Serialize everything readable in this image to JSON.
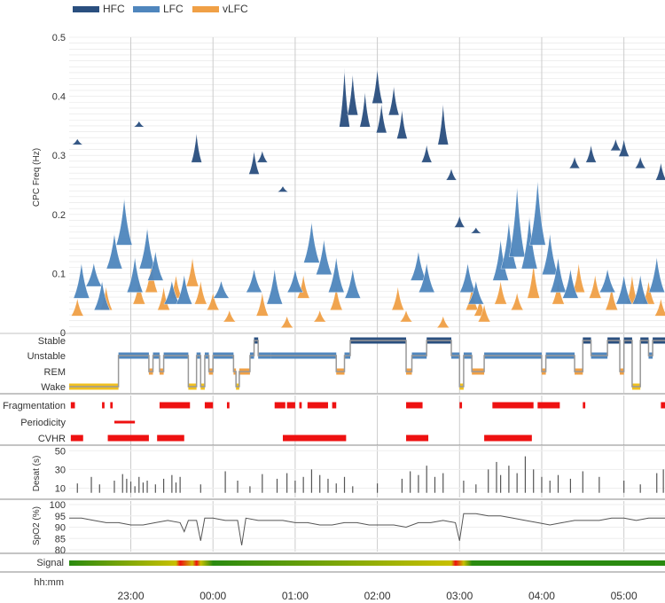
{
  "colors": {
    "hfc": "#2a4f7f",
    "lfc": "#4f86bd",
    "vlfc": "#f0a046",
    "wake": "#f0c020",
    "red": "#ee1111",
    "grid": "#dddddd",
    "text": "#333333",
    "spo2": "#555555"
  },
  "chart_data": [
    {
      "type": "area",
      "name": "cpc-spectrogram",
      "legend": [
        {
          "name": "HFC",
          "color": "#2a4f7f"
        },
        {
          "name": "LFC",
          "color": "#4f86bd"
        },
        {
          "name": "vLFC",
          "color": "#f0a046"
        }
      ],
      "ylabel": "CPC Freq (Hz)",
      "ylim": [
        0,
        0.5
      ],
      "yticks": [
        "0",
        "0.1",
        "0.2",
        "0.3",
        "0.4",
        "0.5"
      ],
      "xlim_hours": [
        22.25,
        29.5
      ],
      "hfc_peaks": [
        [
          22.35,
          0.33,
          0.01
        ],
        [
          23.1,
          0.36,
          0.01
        ],
        [
          23.8,
          0.3,
          0.05
        ],
        [
          24.5,
          0.28,
          0.04
        ],
        [
          24.6,
          0.3,
          0.02
        ],
        [
          24.85,
          0.25,
          0.01
        ],
        [
          25.6,
          0.36,
          0.1
        ],
        [
          25.7,
          0.38,
          0.07
        ],
        [
          25.85,
          0.36,
          0.06
        ],
        [
          26.0,
          0.4,
          0.06
        ],
        [
          26.05,
          0.35,
          0.05
        ],
        [
          26.2,
          0.38,
          0.05
        ],
        [
          26.3,
          0.34,
          0.05
        ],
        [
          26.6,
          0.3,
          0.03
        ],
        [
          26.8,
          0.33,
          0.07
        ],
        [
          26.9,
          0.27,
          0.02
        ],
        [
          27.0,
          0.19,
          0.02
        ],
        [
          27.2,
          0.18,
          0.01
        ],
        [
          28.4,
          0.29,
          0.02
        ],
        [
          28.6,
          0.3,
          0.03
        ],
        [
          28.9,
          0.32,
          0.02
        ],
        [
          29.0,
          0.31,
          0.03
        ],
        [
          29.2,
          0.29,
          0.02
        ],
        [
          29.45,
          0.27,
          0.03
        ]
      ],
      "lfc_peaks": [
        [
          22.4,
          0.07,
          0.06
        ],
        [
          22.55,
          0.09,
          0.04
        ],
        [
          22.65,
          0.05,
          0.05
        ],
        [
          22.8,
          0.12,
          0.06
        ],
        [
          22.92,
          0.16,
          0.08
        ],
        [
          23.05,
          0.08,
          0.06
        ],
        [
          23.2,
          0.12,
          0.07
        ],
        [
          23.3,
          0.1,
          0.05
        ],
        [
          23.5,
          0.06,
          0.04
        ],
        [
          23.65,
          0.06,
          0.05
        ],
        [
          24.1,
          0.07,
          0.03
        ],
        [
          24.5,
          0.08,
          0.04
        ],
        [
          24.75,
          0.06,
          0.06
        ],
        [
          25.0,
          0.08,
          0.04
        ],
        [
          25.2,
          0.13,
          0.07
        ],
        [
          25.35,
          0.11,
          0.06
        ],
        [
          25.5,
          0.08,
          0.06
        ],
        [
          25.7,
          0.07,
          0.05
        ],
        [
          26.5,
          0.1,
          0.05
        ],
        [
          26.6,
          0.08,
          0.05
        ],
        [
          27.1,
          0.08,
          0.05
        ],
        [
          27.2,
          0.06,
          0.04
        ],
        [
          27.5,
          0.1,
          0.07
        ],
        [
          27.6,
          0.12,
          0.08
        ],
        [
          27.7,
          0.14,
          0.12
        ],
        [
          27.85,
          0.12,
          0.09
        ],
        [
          27.95,
          0.16,
          0.11
        ],
        [
          28.1,
          0.11,
          0.07
        ],
        [
          28.2,
          0.08,
          0.06
        ],
        [
          28.35,
          0.07,
          0.05
        ],
        [
          28.8,
          0.08,
          0.04
        ],
        [
          29.0,
          0.06,
          0.05
        ],
        [
          29.2,
          0.06,
          0.05
        ],
        [
          29.4,
          0.08,
          0.06
        ]
      ],
      "vlfc_peaks": [
        [
          22.35,
          0.04,
          0.03
        ],
        [
          22.7,
          0.05,
          0.04
        ],
        [
          23.1,
          0.06,
          0.04
        ],
        [
          23.25,
          0.08,
          0.05
        ],
        [
          23.4,
          0.05,
          0.04
        ],
        [
          23.55,
          0.07,
          0.04
        ],
        [
          23.75,
          0.09,
          0.05
        ],
        [
          23.85,
          0.06,
          0.04
        ],
        [
          24.0,
          0.05,
          0.03
        ],
        [
          24.2,
          0.03,
          0.02
        ],
        [
          24.6,
          0.04,
          0.04
        ],
        [
          24.9,
          0.02,
          0.02
        ],
        [
          25.1,
          0.07,
          0.04
        ],
        [
          25.3,
          0.03,
          0.02
        ],
        [
          25.5,
          0.05,
          0.04
        ],
        [
          26.25,
          0.05,
          0.04
        ],
        [
          26.35,
          0.03,
          0.02
        ],
        [
          26.8,
          0.02,
          0.02
        ],
        [
          27.15,
          0.05,
          0.04
        ],
        [
          27.25,
          0.04,
          0.03
        ],
        [
          27.3,
          0.03,
          0.03
        ],
        [
          27.5,
          0.06,
          0.04
        ],
        [
          27.7,
          0.05,
          0.03
        ],
        [
          27.9,
          0.07,
          0.06
        ],
        [
          28.2,
          0.06,
          0.04
        ],
        [
          28.45,
          0.08,
          0.05
        ],
        [
          28.65,
          0.07,
          0.04
        ],
        [
          28.85,
          0.05,
          0.04
        ],
        [
          29.1,
          0.06,
          0.05
        ],
        [
          29.3,
          0.06,
          0.04
        ],
        [
          29.45,
          0.04,
          0.03
        ]
      ]
    },
    {
      "type": "line",
      "name": "sleep-stages",
      "levels": [
        "Stable",
        "Unstable",
        "REM",
        "Wake"
      ],
      "segments": [
        [
          22.25,
          22.85,
          3
        ],
        [
          22.85,
          23.22,
          1
        ],
        [
          23.22,
          23.27,
          2
        ],
        [
          23.27,
          23.35,
          1
        ],
        [
          23.35,
          23.4,
          2
        ],
        [
          23.4,
          23.7,
          1
        ],
        [
          23.7,
          23.8,
          3
        ],
        [
          23.8,
          23.85,
          1
        ],
        [
          23.85,
          23.9,
          3
        ],
        [
          23.9,
          23.95,
          1
        ],
        [
          23.95,
          24.0,
          2
        ],
        [
          24.0,
          24.25,
          1
        ],
        [
          24.25,
          24.28,
          2
        ],
        [
          24.28,
          24.32,
          3
        ],
        [
          24.32,
          24.45,
          2
        ],
        [
          24.45,
          24.5,
          1
        ],
        [
          24.5,
          24.55,
          0
        ],
        [
          24.55,
          24.7,
          1
        ],
        [
          24.7,
          25.5,
          1
        ],
        [
          25.5,
          25.6,
          2
        ],
        [
          25.6,
          25.67,
          1
        ],
        [
          25.67,
          26.35,
          0
        ],
        [
          26.35,
          26.42,
          2
        ],
        [
          26.42,
          26.6,
          1
        ],
        [
          26.6,
          26.9,
          0
        ],
        [
          26.9,
          27.0,
          1
        ],
        [
          27.0,
          27.05,
          3
        ],
        [
          27.05,
          27.15,
          1
        ],
        [
          27.15,
          27.3,
          2
        ],
        [
          27.3,
          28.0,
          1
        ],
        [
          28.0,
          28.05,
          2
        ],
        [
          28.05,
          28.4,
          1
        ],
        [
          28.4,
          28.5,
          2
        ],
        [
          28.5,
          28.6,
          0
        ],
        [
          28.6,
          28.8,
          1
        ],
        [
          28.8,
          28.95,
          0
        ],
        [
          28.95,
          29.0,
          2
        ],
        [
          29.0,
          29.1,
          0
        ],
        [
          29.1,
          29.2,
          3
        ],
        [
          29.2,
          29.3,
          0
        ],
        [
          29.3,
          29.35,
          1
        ],
        [
          29.35,
          29.5,
          0
        ]
      ]
    },
    {
      "type": "bar",
      "name": "events",
      "rows": [
        "Fragmentation",
        "Periodicity",
        "CVHR"
      ],
      "events": {
        "Fragmentation": [
          [
            22.27,
            22.32
          ],
          [
            22.65,
            22.68
          ],
          [
            22.75,
            22.78
          ],
          [
            23.35,
            23.72
          ],
          [
            23.9,
            24.0
          ],
          [
            24.17,
            24.2
          ],
          [
            24.75,
            24.88
          ],
          [
            24.9,
            25.0
          ],
          [
            25.05,
            25.08
          ],
          [
            25.15,
            25.4
          ],
          [
            25.45,
            25.5
          ],
          [
            26.35,
            26.55
          ],
          [
            27.0,
            27.03
          ],
          [
            27.4,
            27.9
          ],
          [
            27.95,
            28.22
          ],
          [
            28.5,
            28.53
          ],
          [
            29.45,
            29.5
          ]
        ],
        "Periodicity": [
          [
            22.8,
            23.05
          ]
        ],
        "CVHR": [
          [
            22.27,
            22.42
          ],
          [
            22.72,
            23.22
          ],
          [
            23.32,
            23.65
          ],
          [
            24.85,
            25.62
          ],
          [
            26.35,
            26.62
          ],
          [
            27.3,
            27.88
          ]
        ]
      }
    },
    {
      "type": "bar",
      "name": "desat",
      "ylabel": "Desat (s)",
      "ylim": [
        0,
        55
      ],
      "yticks": [
        "10",
        "30",
        "50"
      ],
      "samples": [
        [
          22.35,
          15
        ],
        [
          22.52,
          22
        ],
        [
          22.62,
          14
        ],
        [
          22.8,
          18
        ],
        [
          22.9,
          25
        ],
        [
          22.95,
          20
        ],
        [
          23.0,
          17
        ],
        [
          23.05,
          12
        ],
        [
          23.1,
          22
        ],
        [
          23.15,
          16
        ],
        [
          23.2,
          18
        ],
        [
          23.3,
          14
        ],
        [
          23.4,
          20
        ],
        [
          23.5,
          24
        ],
        [
          23.55,
          16
        ],
        [
          23.6,
          22
        ],
        [
          23.85,
          14
        ],
        [
          24.15,
          28
        ],
        [
          24.3,
          18
        ],
        [
          24.45,
          12
        ],
        [
          24.6,
          25
        ],
        [
          24.78,
          20
        ],
        [
          24.9,
          26
        ],
        [
          25.0,
          18
        ],
        [
          25.1,
          22
        ],
        [
          25.2,
          30
        ],
        [
          25.3,
          24
        ],
        [
          25.4,
          20
        ],
        [
          25.5,
          15
        ],
        [
          25.6,
          22
        ],
        [
          25.7,
          12
        ],
        [
          26.0,
          15
        ],
        [
          26.3,
          20
        ],
        [
          26.4,
          28
        ],
        [
          26.5,
          24
        ],
        [
          26.6,
          34
        ],
        [
          26.7,
          22
        ],
        [
          26.8,
          26
        ],
        [
          27.05,
          18
        ],
        [
          27.2,
          14
        ],
        [
          27.35,
          30
        ],
        [
          27.45,
          38
        ],
        [
          27.5,
          24
        ],
        [
          27.6,
          34
        ],
        [
          27.7,
          26
        ],
        [
          27.8,
          44
        ],
        [
          27.9,
          30
        ],
        [
          28.0,
          22
        ],
        [
          28.1,
          18
        ],
        [
          28.2,
          24
        ],
        [
          28.35,
          20
        ],
        [
          28.5,
          28
        ],
        [
          28.7,
          22
        ],
        [
          29.0,
          18
        ],
        [
          29.2,
          14
        ],
        [
          29.4,
          26
        ],
        [
          29.48,
          30
        ]
      ]
    },
    {
      "type": "line",
      "name": "spo2",
      "ylabel": "SpO2 (%)",
      "ylim": [
        80,
        100
      ],
      "yticks": [
        "80",
        "85",
        "90",
        "95",
        "100"
      ],
      "points": [
        [
          22.25,
          94
        ],
        [
          22.4,
          94
        ],
        [
          22.55,
          93
        ],
        [
          22.7,
          92
        ],
        [
          22.85,
          92
        ],
        [
          23.0,
          91
        ],
        [
          23.15,
          91
        ],
        [
          23.3,
          92
        ],
        [
          23.45,
          93
        ],
        [
          23.6,
          92
        ],
        [
          23.65,
          88
        ],
        [
          23.7,
          93
        ],
        [
          23.8,
          93
        ],
        [
          23.85,
          84
        ],
        [
          23.9,
          94
        ],
        [
          24.0,
          94
        ],
        [
          24.15,
          93
        ],
        [
          24.3,
          93
        ],
        [
          24.35,
          82
        ],
        [
          24.4,
          94
        ],
        [
          24.55,
          93
        ],
        [
          24.7,
          93
        ],
        [
          24.85,
          93
        ],
        [
          25.0,
          92
        ],
        [
          25.15,
          92
        ],
        [
          25.3,
          91
        ],
        [
          25.45,
          91
        ],
        [
          25.6,
          92
        ],
        [
          25.75,
          92
        ],
        [
          25.9,
          91
        ],
        [
          26.05,
          91
        ],
        [
          26.2,
          91
        ],
        [
          26.35,
          90
        ],
        [
          26.5,
          92
        ],
        [
          26.65,
          92
        ],
        [
          26.8,
          93
        ],
        [
          26.95,
          92
        ],
        [
          27.0,
          84
        ],
        [
          27.05,
          96
        ],
        [
          27.2,
          96
        ],
        [
          27.35,
          95
        ],
        [
          27.5,
          95
        ],
        [
          27.65,
          94
        ],
        [
          27.8,
          93
        ],
        [
          27.95,
          92
        ],
        [
          28.1,
          91
        ],
        [
          28.25,
          92
        ],
        [
          28.4,
          93
        ],
        [
          28.55,
          93
        ],
        [
          28.7,
          93
        ],
        [
          28.85,
          94
        ],
        [
          29.0,
          94
        ],
        [
          29.15,
          93
        ],
        [
          29.3,
          94
        ],
        [
          29.5,
          94
        ]
      ]
    },
    {
      "type": "heatmap",
      "name": "signal-quality",
      "label": "Signal",
      "stops": [
        [
          22.25,
          "good"
        ],
        [
          23.55,
          "fair"
        ],
        [
          23.6,
          "poor"
        ],
        [
          23.75,
          "fair"
        ],
        [
          23.8,
          "poor"
        ],
        [
          23.85,
          "fair"
        ],
        [
          24.0,
          "good"
        ],
        [
          26.9,
          "fair"
        ],
        [
          26.95,
          "poor"
        ],
        [
          27.05,
          "fair"
        ],
        [
          27.15,
          "good"
        ],
        [
          29.5,
          "good"
        ]
      ],
      "xlabel": "hh:mm",
      "xticks": [
        {
          "h": 23,
          "label": "23:00"
        },
        {
          "h": 24,
          "label": "00:00"
        },
        {
          "h": 25,
          "label": "01:00"
        },
        {
          "h": 26,
          "label": "02:00"
        },
        {
          "h": 27,
          "label": "03:00"
        },
        {
          "h": 28,
          "label": "04:00"
        },
        {
          "h": 29,
          "label": "05:00"
        }
      ]
    }
  ]
}
